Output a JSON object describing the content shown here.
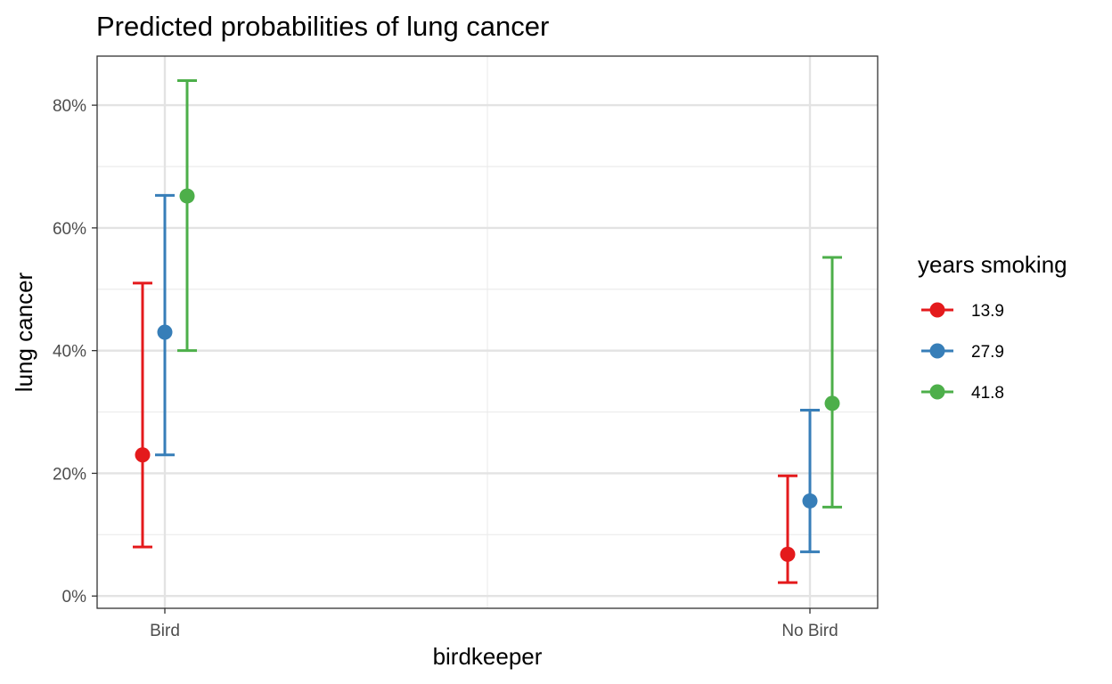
{
  "chart_data": {
    "type": "scatter",
    "title": "Predicted probabilities of lung cancer",
    "xlabel": "birdkeeper",
    "ylabel": "lung cancer",
    "categories": [
      "Bird",
      "No Bird"
    ],
    "y_ticks": [
      0,
      20,
      40,
      60,
      80
    ],
    "y_tick_labels": [
      "0%",
      "20%",
      "40%",
      "60%",
      "80%"
    ],
    "ylim": [
      -2,
      88
    ],
    "grid": true,
    "legend": {
      "title": "years smoking",
      "position": "right"
    },
    "series": [
      {
        "name": "13.9",
        "color": "#e41a1c",
        "values": [
          23.0,
          6.8
        ],
        "lower": [
          8.0,
          2.2
        ],
        "upper": [
          51.0,
          19.6
        ]
      },
      {
        "name": "27.9",
        "color": "#377eb8",
        "values": [
          43.0,
          15.5
        ],
        "lower": [
          23.0,
          7.2
        ],
        "upper": [
          65.3,
          30.3
        ]
      },
      {
        "name": "41.8",
        "color": "#4daf4a",
        "values": [
          65.2,
          31.4
        ],
        "lower": [
          40.0,
          14.5
        ],
        "upper": [
          84.0,
          55.2
        ]
      }
    ]
  }
}
